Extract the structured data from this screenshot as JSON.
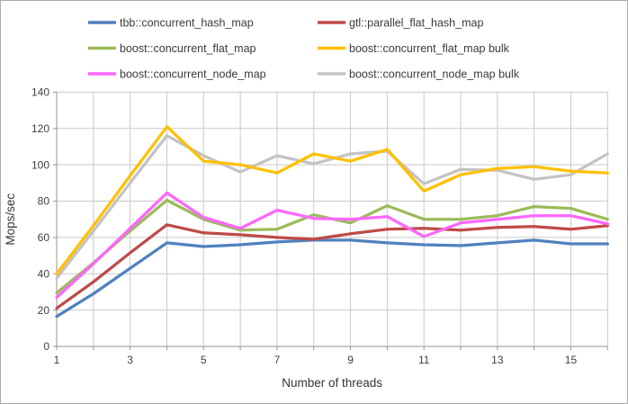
{
  "figure": {
    "background": "#ffffff",
    "border_color": "#ababab"
  },
  "axes_style": {
    "text_color": "#404040",
    "axis_line_color": "#969696",
    "grid_color": "#c9c9c9"
  },
  "chart_data": {
    "type": "line",
    "title": "",
    "xlabel": "Number of threads",
    "ylabel": "Mops/sec",
    "x": [
      1,
      2,
      3,
      4,
      5,
      6,
      7,
      8,
      9,
      10,
      11,
      12,
      13,
      14,
      15,
      16
    ],
    "x_tick_labels": [
      "1",
      "3",
      "5",
      "7",
      "9",
      "11",
      "13",
      "15"
    ],
    "x_ticks_shown_at": [
      1,
      3,
      5,
      7,
      9,
      11,
      13,
      15
    ],
    "xlim": [
      1,
      16
    ],
    "ylim": [
      0,
      140
    ],
    "y_ticks": [
      0,
      20,
      40,
      60,
      80,
      100,
      120,
      140
    ],
    "grid": true,
    "legend_position": "top",
    "legend_columns": 2,
    "series": [
      {
        "name": "tbb::concurrent_hash_map",
        "color": "#4F81BD",
        "values": [
          16.5,
          29,
          43,
          57,
          55,
          56,
          57.5,
          58.5,
          58.5,
          57,
          56,
          55.5,
          57,
          58.5,
          56.5,
          56.5
        ]
      },
      {
        "name": "gtl::parallel_flat_hash_map",
        "color": "#BE4B48",
        "values": [
          21,
          35.5,
          51.5,
          67,
          62.5,
          61.5,
          60,
          59,
          62,
          64.5,
          65,
          64,
          65.5,
          66,
          64.5,
          66.5
        ]
      },
      {
        "name": "boost::concurrent_flat_map",
        "color": "#9BBB59",
        "values": [
          29.5,
          46,
          63.5,
          80.5,
          70,
          64,
          64.5,
          72.5,
          68,
          77.5,
          70,
          70,
          72,
          77,
          76,
          70
        ]
      },
      {
        "name": "boost::concurrent_flat_map bulk",
        "color": "#FFC000",
        "values": [
          40,
          66.5,
          94,
          121,
          102,
          100,
          95.5,
          106,
          102,
          108.5,
          85.5,
          94.5,
          98,
          99,
          96.5,
          95.5
        ]
      },
      {
        "name": "boost::concurrent_node_map",
        "color": "#FF66FF",
        "values": [
          27,
          45.5,
          65,
          84.5,
          71,
          65,
          75,
          70.5,
          70,
          71.5,
          60.5,
          68,
          70,
          72,
          72,
          67.5
        ]
      },
      {
        "name": "boost::concurrent_node_map bulk",
        "color": "#C3C3C3",
        "values": [
          37.5,
          63.5,
          90,
          116,
          105,
          96,
          105,
          100.5,
          106,
          107.5,
          89.5,
          97.5,
          97,
          92,
          94.5,
          106
        ]
      }
    ]
  }
}
